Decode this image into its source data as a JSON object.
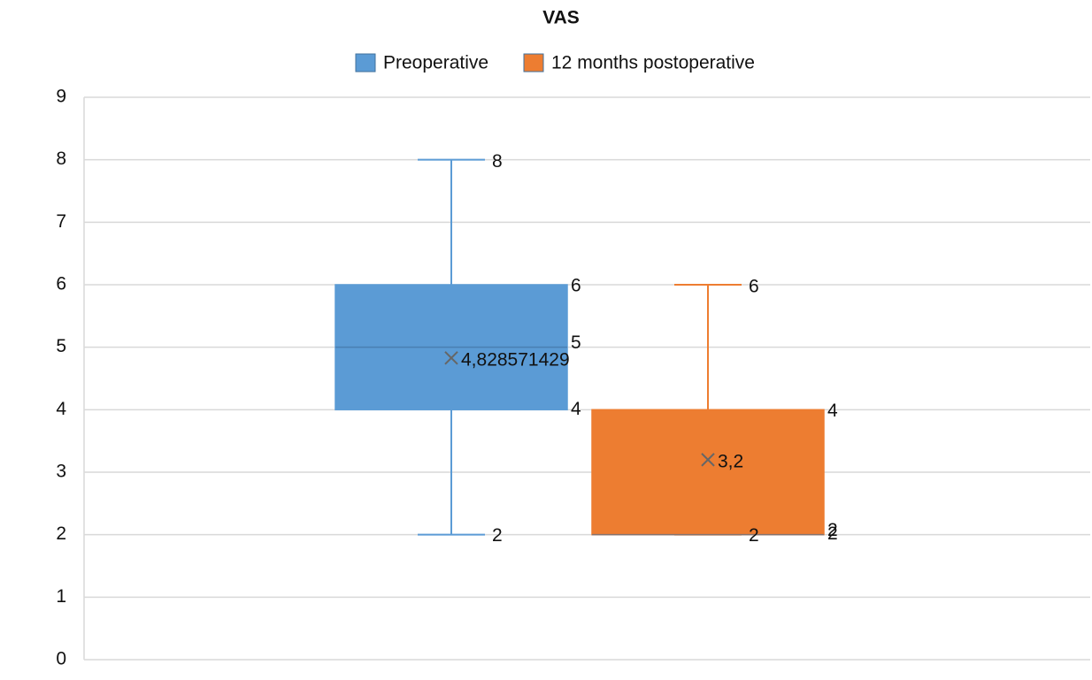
{
  "chart_data": {
    "type": "box",
    "title": "VAS",
    "ylim": [
      0,
      9
    ],
    "yticks": [
      0,
      1,
      2,
      3,
      4,
      5,
      6,
      7,
      8,
      9
    ],
    "grid": true,
    "legend": "top",
    "series": [
      {
        "name": "Preoperative",
        "color": "#5b9bd5",
        "min": 2,
        "q1": 4,
        "median": 5,
        "q3": 6,
        "max": 8,
        "mean": 4.828571429,
        "mean_label": "4,828571429"
      },
      {
        "name": "12 months postoperative",
        "color": "#ed7d31",
        "min": 2,
        "q1": 2,
        "median": 2,
        "q3": 4,
        "max": 6,
        "mean": 3.2,
        "mean_label": "3,2"
      }
    ]
  }
}
